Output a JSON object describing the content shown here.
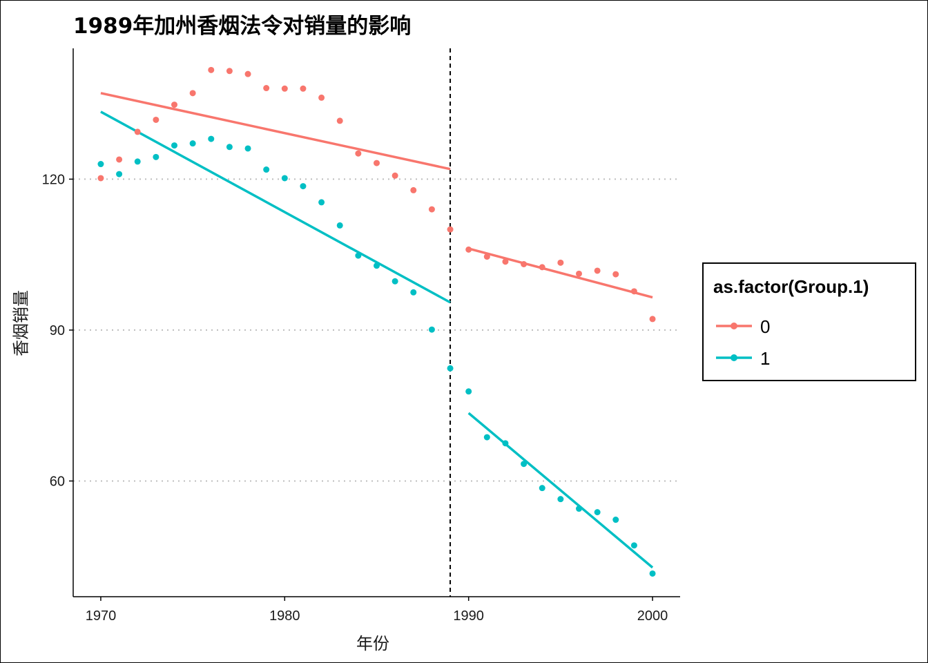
{
  "title": "1989年加州香烟法令对销量的影响",
  "chart_data": {
    "type": "scatter",
    "title": "1989年加州香烟法令对销量的影响",
    "xlabel": "年份",
    "ylabel": "香烟销量",
    "xlim": [
      1968.5,
      2001.5
    ],
    "ylim": [
      37,
      146
    ],
    "x_ticks": [
      1970,
      1980,
      1990,
      2000
    ],
    "y_ticks": [
      60,
      90,
      120
    ],
    "grid": "horizontal dotted at y ticks",
    "vline": 1989,
    "legend": {
      "title": "as.factor(Group.1)",
      "position": "right"
    },
    "series": [
      {
        "name": "0",
        "color": "#F8766D",
        "x": [
          1970,
          1971,
          1972,
          1973,
          1974,
          1975,
          1976,
          1977,
          1978,
          1979,
          1980,
          1981,
          1982,
          1983,
          1984,
          1985,
          1986,
          1987,
          1988,
          1989,
          1990,
          1991,
          1992,
          1993,
          1994,
          1995,
          1996,
          1997,
          1998,
          1999,
          2000
        ],
        "y": [
          120.2,
          123.9,
          129.4,
          131.8,
          134.8,
          137.1,
          141.7,
          141.5,
          140.9,
          138.1,
          138.0,
          138.0,
          136.2,
          131.6,
          125.1,
          123.2,
          120.7,
          117.8,
          114.0,
          110.0,
          106.0,
          104.6,
          103.6,
          103.1,
          102.5,
          103.4,
          101.2,
          101.8,
          101.1,
          97.7,
          92.2
        ],
        "fit": [
          {
            "x": [
              1970,
              1989
            ],
            "y": [
              137.1,
              122.0
            ]
          },
          {
            "x": [
              1990,
              2000
            ],
            "y": [
              106.2,
              96.5
            ]
          }
        ]
      },
      {
        "name": "1",
        "color": "#00BFC4",
        "x": [
          1970,
          1971,
          1972,
          1973,
          1974,
          1975,
          1976,
          1977,
          1978,
          1979,
          1980,
          1981,
          1982,
          1983,
          1984,
          1985,
          1986,
          1987,
          1988,
          1989,
          1990,
          1991,
          1992,
          1993,
          1994,
          1995,
          1996,
          1997,
          1998,
          1999,
          2000
        ],
        "y": [
          123.0,
          121.0,
          123.5,
          124.4,
          126.7,
          127.1,
          128.0,
          126.4,
          126.1,
          121.9,
          120.2,
          118.6,
          115.4,
          110.8,
          104.8,
          102.8,
          99.7,
          97.5,
          90.1,
          82.4,
          77.8,
          68.7,
          67.5,
          63.4,
          58.6,
          56.4,
          54.5,
          53.8,
          52.3,
          47.2,
          41.6
        ],
        "fit": [
          {
            "x": [
              1970,
              1989
            ],
            "y": [
              133.4,
              95.5
            ]
          },
          {
            "x": [
              1990,
              2000
            ],
            "y": [
              73.5,
              42.8
            ]
          }
        ]
      }
    ]
  }
}
